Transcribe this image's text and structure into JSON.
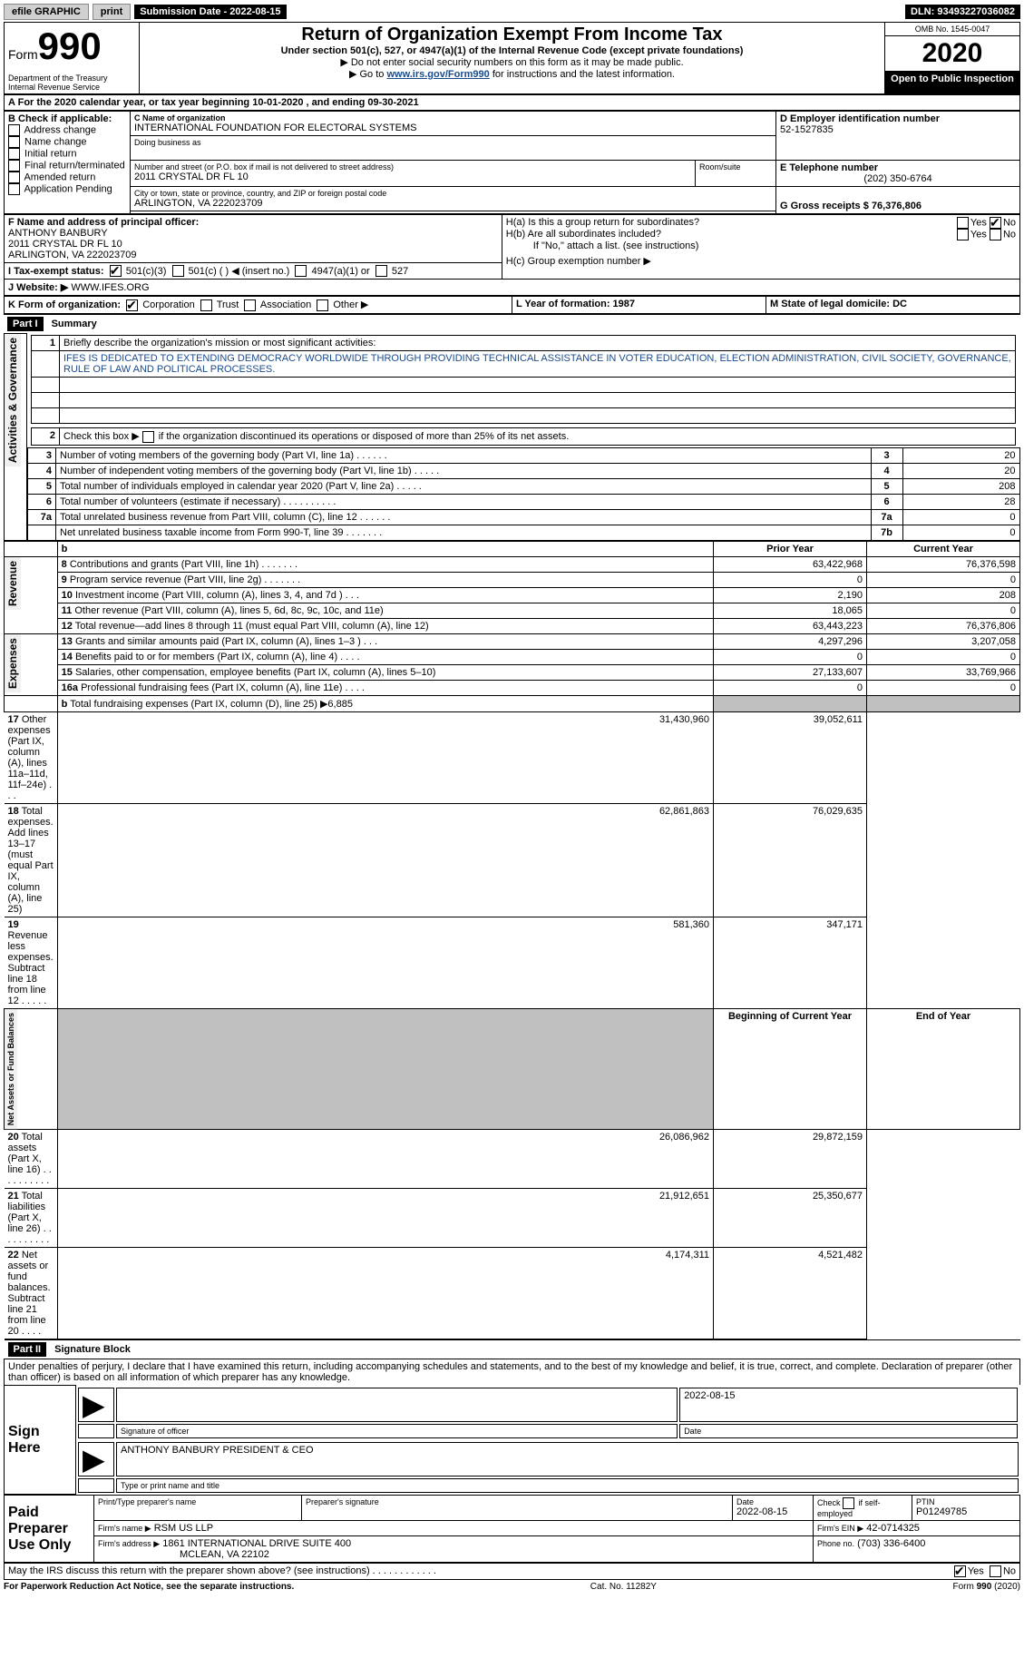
{
  "top_bar": {
    "efile_label": "efile GRAPHIC",
    "print_btn": "print",
    "submission_label": "Submission Date - 2022-08-15",
    "dln": "DLN: 93493227036082"
  },
  "header": {
    "form_word": "Form",
    "form_number": "990",
    "dept": "Department of the Treasury\nInternal Revenue Service",
    "title": "Return of Organization Exempt From Income Tax",
    "subtitle": "Under section 501(c), 527, or 4947(a)(1) of the Internal Revenue Code (except private foundations)",
    "instr1": "Do not enter social security numbers on this form as it may be made public.",
    "instr2_pre": "Go to ",
    "instr2_link": "www.irs.gov/Form990",
    "instr2_post": " for instructions and the latest information.",
    "omb": "OMB No. 1545-0047",
    "year": "2020",
    "open_public": "Open to Public Inspection"
  },
  "section_a": {
    "tax_year": "For the 2020 calendar year, or tax year beginning 10-01-2020    , and ending 09-30-2021"
  },
  "section_b": {
    "label": "B Check if applicable:",
    "opts": [
      "Address change",
      "Name change",
      "Initial return",
      "Final return/terminated",
      "Amended return",
      "Application Pending"
    ]
  },
  "section_c": {
    "label": "C Name of organization",
    "org_name": "INTERNATIONAL FOUNDATION FOR ELECTORAL SYSTEMS",
    "dba_label": "Doing business as",
    "addr_label": "Number and street (or P.O. box if mail is not delivered to street address)",
    "room_label": "Room/suite",
    "address": "2011 CRYSTAL DR FL 10",
    "city_label": "City or town, state or province, country, and ZIP or foreign postal code",
    "city": "ARLINGTON, VA  222023709"
  },
  "section_d": {
    "label": "D Employer identification number",
    "value": "52-1527835"
  },
  "section_e": {
    "label": "E Telephone number",
    "value": "(202) 350-6764"
  },
  "section_g": {
    "label": "G Gross receipts $ 76,376,806"
  },
  "section_f": {
    "label": "F Name and address of principal officer:",
    "name": "ANTHONY BANBURY",
    "addr1": "2011 CRYSTAL DR FL 10",
    "addr2": "ARLINGTON, VA  222023709"
  },
  "section_h": {
    "ha_label": "H(a)  Is this a group return for subordinates?",
    "hb_label": "H(b)  Are all subordinates included?",
    "hb_note": "If \"No,\" attach a list. (see instructions)",
    "hc_label": "H(c)  Group exemption number ▶",
    "yes": "Yes",
    "no": "No"
  },
  "section_i": {
    "label": "I   Tax-exempt status:",
    "opts": [
      "501(c)(3)",
      "501(c) (  ) ◀ (insert no.)",
      "4947(a)(1) or",
      "527"
    ]
  },
  "section_j": {
    "label": "J   Website: ▶",
    "value": "WWW.IFES.ORG"
  },
  "section_k": {
    "label": "K Form of organization:",
    "opts": [
      "Corporation",
      "Trust",
      "Association",
      "Other ▶"
    ]
  },
  "section_l": {
    "label": "L Year of formation: 1987"
  },
  "section_m": {
    "label": "M State of legal domicile: DC"
  },
  "part1": {
    "part_label": "Part I",
    "title": "Summary",
    "q1": "Briefly describe the organization's mission or most significant activities:",
    "mission": "IFES IS DEDICATED TO EXTENDING DEMOCRACY WORLDWIDE THROUGH PROVIDING TECHNICAL ASSISTANCE IN VOTER EDUCATION, ELECTION ADMINISTRATION, CIVIL SOCIETY, GOVERNANCE, RULE OF LAW AND POLITICAL PROCESSES.",
    "q2": "Check this box ▶      if the organization discontinued its operations or disposed of more than 25% of its net assets.",
    "lines_simple": [
      {
        "n": "3",
        "t": "Number of voting members of the governing body (Part VI, line 1a)   .    .    .    .    .    .",
        "b": "3",
        "v": "20"
      },
      {
        "n": "4",
        "t": "Number of independent voting members of the governing body (Part VI, line 1b)   .    .    .    .    .",
        "b": "4",
        "v": "20"
      },
      {
        "n": "5",
        "t": "Total number of individuals employed in calendar year 2020 (Part V, line 2a)   .    .    .    .    .",
        "b": "5",
        "v": "208"
      },
      {
        "n": "6",
        "t": "Total number of volunteers (estimate if necessary)   .    .    .    .    .    .    .    .    .    .",
        "b": "6",
        "v": "28"
      },
      {
        "n": "7a",
        "t": "Total unrelated business revenue from Part VIII, column (C), line 12   .    .    .    .    .    .",
        "b": "7a",
        "v": "0"
      },
      {
        "n": "",
        "t": "Net unrelated business taxable income from Form 990-T, line 39   .    .    .    .    .    .    .",
        "b": "7b",
        "v": "0"
      }
    ],
    "col_prior": "Prior Year",
    "col_current": "Current Year",
    "revenue": [
      {
        "n": "8",
        "t": "Contributions and grants (Part VIII, line 1h)   .    .    .    .    .    .    .",
        "p": "63,422,968",
        "c": "76,376,598"
      },
      {
        "n": "9",
        "t": "Program service revenue (Part VIII, line 2g)   .    .    .    .    .    .    .",
        "p": "0",
        "c": "0"
      },
      {
        "n": "10",
        "t": "Investment income (Part VIII, column (A), lines 3, 4, and 7d )   .    .    .",
        "p": "2,190",
        "c": "208"
      },
      {
        "n": "11",
        "t": "Other revenue (Part VIII, column (A), lines 5, 6d, 8c, 9c, 10c, and 11e)",
        "p": "18,065",
        "c": "0"
      },
      {
        "n": "12",
        "t": "Total revenue—add lines 8 through 11 (must equal Part VIII, column (A), line 12)",
        "p": "63,443,223",
        "c": "76,376,806"
      }
    ],
    "expenses": [
      {
        "n": "13",
        "t": "Grants and similar amounts paid (Part IX, column (A), lines 1–3 )   .    .    .",
        "p": "4,297,296",
        "c": "3,207,058"
      },
      {
        "n": "14",
        "t": "Benefits paid to or for members (Part IX, column (A), line 4)   .    .    .    .",
        "p": "0",
        "c": "0"
      },
      {
        "n": "15",
        "t": "Salaries, other compensation, employee benefits (Part IX, column (A), lines 5–10)",
        "p": "27,133,607",
        "c": "33,769,966"
      },
      {
        "n": "16a",
        "t": "Professional fundraising fees (Part IX, column (A), line 11e)   .    .    .    .",
        "p": "0",
        "c": "0"
      }
    ],
    "line_b": {
      "n": "b",
      "t": "Total fundraising expenses (Part IX, column (D), line 25) ▶6,885"
    },
    "expenses2": [
      {
        "n": "17",
        "t": "Other expenses (Part IX, column (A), lines 11a–11d, 11f–24e)   .    .    .",
        "p": "31,430,960",
        "c": "39,052,611"
      },
      {
        "n": "18",
        "t": "Total expenses. Add lines 13–17 (must equal Part IX, column (A), line 25)",
        "p": "62,861,863",
        "c": "76,029,635"
      },
      {
        "n": "19",
        "t": "Revenue less expenses. Subtract line 18 from line 12   .    .    .    .    .",
        "p": "581,360",
        "c": "347,171"
      }
    ],
    "col_begin": "Beginning of Current Year",
    "col_end": "End of Year",
    "netassets": [
      {
        "n": "20",
        "t": "Total assets (Part X, line 16)   .    .    .    .    .    .    .    .    .    .",
        "p": "26,086,962",
        "c": "29,872,159"
      },
      {
        "n": "21",
        "t": "Total liabilities (Part X, line 26)   .    .    .    .    .    .    .    .    .    .",
        "p": "21,912,651",
        "c": "25,350,677"
      },
      {
        "n": "22",
        "t": "Net assets or fund balances. Subtract line 21 from line 20   .    .    .    .",
        "p": "4,174,311",
        "c": "4,521,482"
      }
    ],
    "vert_gov": "Activities & Governance",
    "vert_rev": "Revenue",
    "vert_exp": "Expenses",
    "vert_na": "Net Assets or Fund Balances"
  },
  "part2": {
    "part_label": "Part II",
    "title": "Signature Block",
    "declaration": "Under penalties of perjury, I declare that I have examined this return, including accompanying schedules and statements, and to the best of my knowledge and belief, it is true, correct, and complete. Declaration of preparer (other than officer) is based on all information of which preparer has any knowledge.",
    "sign_here": "Sign Here",
    "sig_officer": "Signature of officer",
    "sig_date": "2022-08-15",
    "date_label": "Date",
    "officer_name": "ANTHONY BANBURY PRESIDENT & CEO",
    "officer_type": "Type or print name and title",
    "paid_prep": "Paid Preparer Use Only",
    "prep_name_label": "Print/Type preparer's name",
    "prep_sig_label": "Preparer's signature",
    "prep_date_label": "Date",
    "prep_date": "2022-08-15",
    "self_emp": "Check        if self-employed",
    "ptin_label": "PTIN",
    "ptin": "P01249785",
    "firm_name_label": "Firm's name    ▶",
    "firm_name": "RSM US LLP",
    "firm_ein_label": "Firm's EIN ▶",
    "firm_ein": "42-0714325",
    "firm_addr_label": "Firm's address ▶",
    "firm_addr": "1861 INTERNATIONAL DRIVE SUITE 400",
    "firm_city": "MCLEAN, VA  22102",
    "phone_label": "Phone no.",
    "phone": "(703) 336-6400",
    "discuss": "May the IRS discuss this return with the preparer shown above? (see instructions)   .    .    .    .    .    .    .    .    .    .    .    ."
  },
  "footer": {
    "left": "For Paperwork Reduction Act Notice, see the separate instructions.",
    "mid": "Cat. No. 11282Y",
    "right_form": "Form ",
    "right_num": "990",
    "right_year": " (2020)"
  }
}
